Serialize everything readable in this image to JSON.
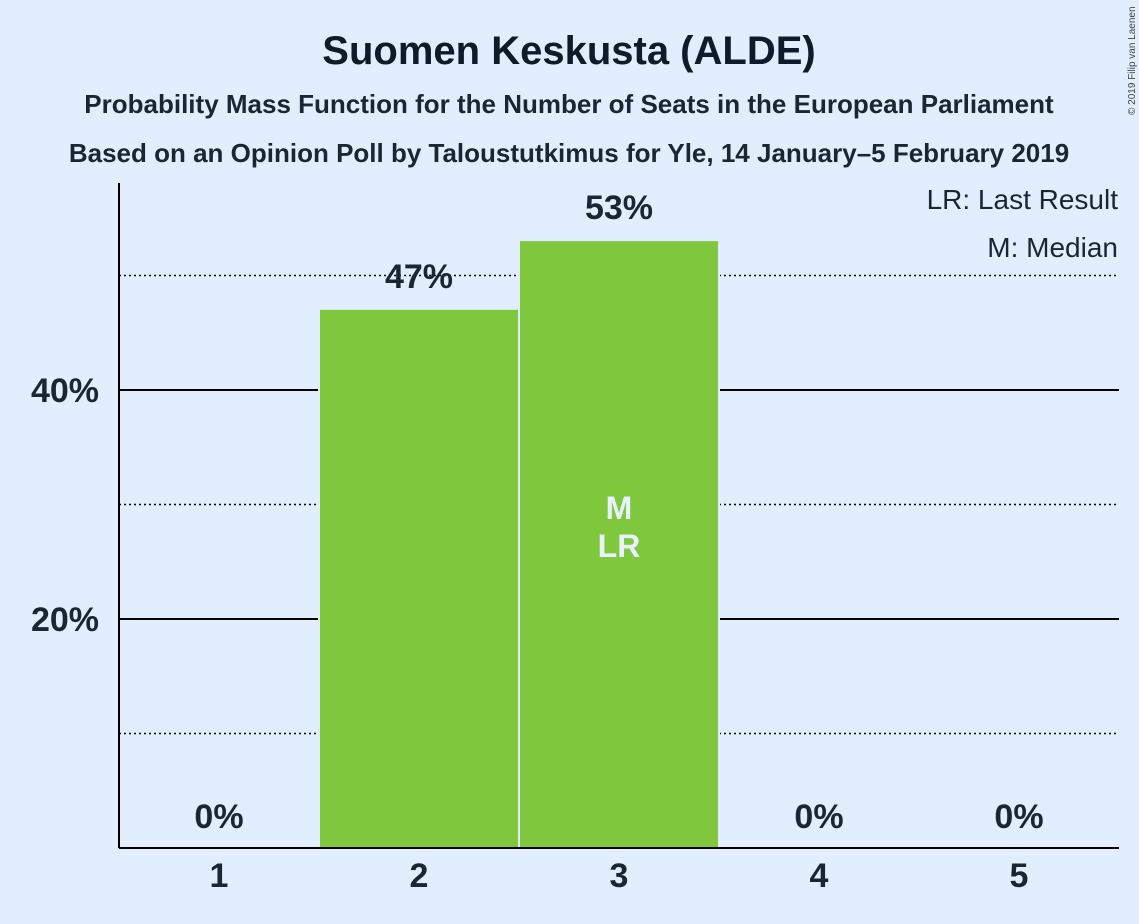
{
  "chart_data": {
    "type": "bar",
    "title": "Suomen Keskusta (ALDE)",
    "subtitle": "Probability Mass Function for the Number of Seats in the European Parliament",
    "subtitle2": "Based on an Opinion Poll by Taloustutkimus for Yle, 14 January–5 February 2019",
    "categories": [
      "1",
      "2",
      "3",
      "4",
      "5"
    ],
    "values": [
      0,
      47,
      53,
      0,
      0
    ],
    "value_labels": [
      "0%",
      "47%",
      "53%",
      "0%",
      "0%"
    ],
    "ylim": [
      0,
      58
    ],
    "yticks": [
      {
        "value": 20,
        "label": "20%"
      },
      {
        "value": 40,
        "label": "40%"
      }
    ],
    "minor_gridlines": [
      10,
      30,
      50
    ],
    "median_category": "3",
    "last_result_category": "3",
    "marker_median": "M",
    "marker_last_result": "LR",
    "legend": [
      "LR: Last Result",
      "M: Median"
    ],
    "bar_color": "#7fc73d",
    "background_color": "#e0eefe",
    "copyright": "© 2019 Filip van Laenen"
  }
}
